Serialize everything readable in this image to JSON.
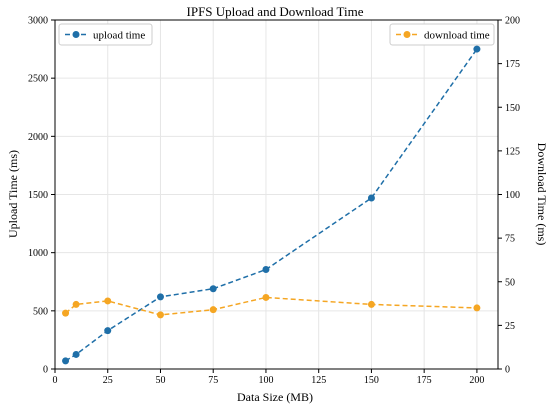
{
  "chart_data": {
    "type": "line",
    "title": "IPFS Upload and Download Time",
    "xlabel": "Data Size (MB)",
    "ylabel_left": "Upload Time (ms)",
    "ylabel_right": "Download Time (ms)",
    "xlim": [
      0,
      210
    ],
    "ylim_left": [
      0,
      3000
    ],
    "ylim_right": [
      0,
      200
    ],
    "xticks": [
      0,
      25,
      50,
      75,
      100,
      125,
      150,
      175,
      200
    ],
    "yticks_left": [
      0,
      500,
      1000,
      1500,
      2000,
      2500,
      3000
    ],
    "yticks_right": [
      0,
      25,
      50,
      75,
      100,
      125,
      150,
      175,
      200
    ],
    "grid": true,
    "series": [
      {
        "name": "upload time",
        "axis": "left",
        "color": "#1f6fa8",
        "legend_position": "top-left",
        "x": [
          5,
          10,
          25,
          50,
          75,
          100,
          150,
          200
        ],
        "y": [
          70,
          125,
          330,
          620,
          690,
          855,
          1470,
          2750
        ]
      },
      {
        "name": "download time",
        "axis": "right",
        "color": "#f5a623",
        "legend_position": "top-right",
        "x": [
          5,
          10,
          25,
          50,
          75,
          100,
          150,
          200
        ],
        "y": [
          32,
          37,
          39,
          31,
          34,
          41,
          37,
          35
        ]
      }
    ]
  }
}
